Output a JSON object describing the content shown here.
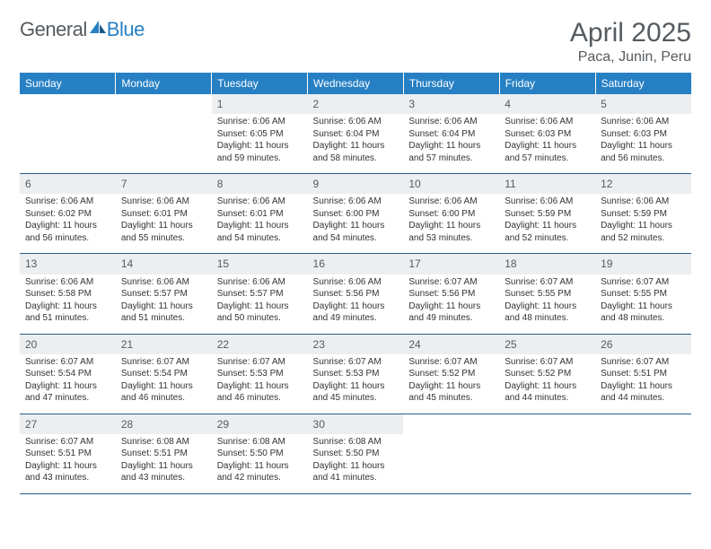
{
  "logo": {
    "text1": "General",
    "text2": "Blue"
  },
  "title": "April 2025",
  "location": "Paca, Junin, Peru",
  "colors": {
    "header_bg": "#2780c4",
    "header_text": "#ffffff",
    "daynum_bg": "#eceeef",
    "text_muted": "#555b60",
    "rule": "#2b5d86"
  },
  "day_headers": [
    "Sunday",
    "Monday",
    "Tuesday",
    "Wednesday",
    "Thursday",
    "Friday",
    "Saturday"
  ],
  "weeks": [
    {
      "nums": [
        "",
        "",
        "1",
        "2",
        "3",
        "4",
        "5"
      ],
      "cells": [
        null,
        null,
        {
          "sr": "6:06 AM",
          "ss": "6:05 PM",
          "dl": "11 hours and 59 minutes."
        },
        {
          "sr": "6:06 AM",
          "ss": "6:04 PM",
          "dl": "11 hours and 58 minutes."
        },
        {
          "sr": "6:06 AM",
          "ss": "6:04 PM",
          "dl": "11 hours and 57 minutes."
        },
        {
          "sr": "6:06 AM",
          "ss": "6:03 PM",
          "dl": "11 hours and 57 minutes."
        },
        {
          "sr": "6:06 AM",
          "ss": "6:03 PM",
          "dl": "11 hours and 56 minutes."
        }
      ]
    },
    {
      "nums": [
        "6",
        "7",
        "8",
        "9",
        "10",
        "11",
        "12"
      ],
      "cells": [
        {
          "sr": "6:06 AM",
          "ss": "6:02 PM",
          "dl": "11 hours and 56 minutes."
        },
        {
          "sr": "6:06 AM",
          "ss": "6:01 PM",
          "dl": "11 hours and 55 minutes."
        },
        {
          "sr": "6:06 AM",
          "ss": "6:01 PM",
          "dl": "11 hours and 54 minutes."
        },
        {
          "sr": "6:06 AM",
          "ss": "6:00 PM",
          "dl": "11 hours and 54 minutes."
        },
        {
          "sr": "6:06 AM",
          "ss": "6:00 PM",
          "dl": "11 hours and 53 minutes."
        },
        {
          "sr": "6:06 AM",
          "ss": "5:59 PM",
          "dl": "11 hours and 52 minutes."
        },
        {
          "sr": "6:06 AM",
          "ss": "5:59 PM",
          "dl": "11 hours and 52 minutes."
        }
      ]
    },
    {
      "nums": [
        "13",
        "14",
        "15",
        "16",
        "17",
        "18",
        "19"
      ],
      "cells": [
        {
          "sr": "6:06 AM",
          "ss": "5:58 PM",
          "dl": "11 hours and 51 minutes."
        },
        {
          "sr": "6:06 AM",
          "ss": "5:57 PM",
          "dl": "11 hours and 51 minutes."
        },
        {
          "sr": "6:06 AM",
          "ss": "5:57 PM",
          "dl": "11 hours and 50 minutes."
        },
        {
          "sr": "6:06 AM",
          "ss": "5:56 PM",
          "dl": "11 hours and 49 minutes."
        },
        {
          "sr": "6:07 AM",
          "ss": "5:56 PM",
          "dl": "11 hours and 49 minutes."
        },
        {
          "sr": "6:07 AM",
          "ss": "5:55 PM",
          "dl": "11 hours and 48 minutes."
        },
        {
          "sr": "6:07 AM",
          "ss": "5:55 PM",
          "dl": "11 hours and 48 minutes."
        }
      ]
    },
    {
      "nums": [
        "20",
        "21",
        "22",
        "23",
        "24",
        "25",
        "26"
      ],
      "cells": [
        {
          "sr": "6:07 AM",
          "ss": "5:54 PM",
          "dl": "11 hours and 47 minutes."
        },
        {
          "sr": "6:07 AM",
          "ss": "5:54 PM",
          "dl": "11 hours and 46 minutes."
        },
        {
          "sr": "6:07 AM",
          "ss": "5:53 PM",
          "dl": "11 hours and 46 minutes."
        },
        {
          "sr": "6:07 AM",
          "ss": "5:53 PM",
          "dl": "11 hours and 45 minutes."
        },
        {
          "sr": "6:07 AM",
          "ss": "5:52 PM",
          "dl": "11 hours and 45 minutes."
        },
        {
          "sr": "6:07 AM",
          "ss": "5:52 PM",
          "dl": "11 hours and 44 minutes."
        },
        {
          "sr": "6:07 AM",
          "ss": "5:51 PM",
          "dl": "11 hours and 44 minutes."
        }
      ]
    },
    {
      "nums": [
        "27",
        "28",
        "29",
        "30",
        "",
        "",
        ""
      ],
      "cells": [
        {
          "sr": "6:07 AM",
          "ss": "5:51 PM",
          "dl": "11 hours and 43 minutes."
        },
        {
          "sr": "6:08 AM",
          "ss": "5:51 PM",
          "dl": "11 hours and 43 minutes."
        },
        {
          "sr": "6:08 AM",
          "ss": "5:50 PM",
          "dl": "11 hours and 42 minutes."
        },
        {
          "sr": "6:08 AM",
          "ss": "5:50 PM",
          "dl": "11 hours and 41 minutes."
        },
        null,
        null,
        null
      ]
    }
  ],
  "labels": {
    "sunrise": "Sunrise: ",
    "sunset": "Sunset: ",
    "daylight": "Daylight: "
  }
}
